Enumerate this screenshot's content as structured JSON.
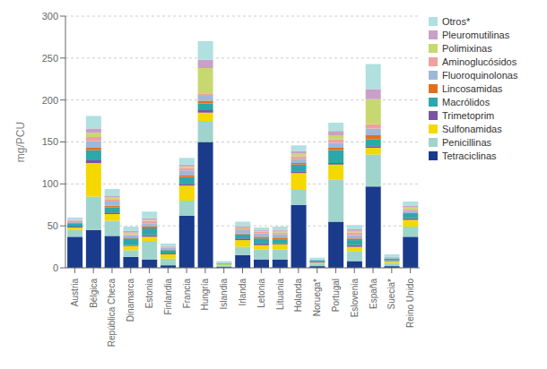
{
  "chart_data": {
    "type": "bar",
    "stacked": true,
    "ylabel": "mg/PCU",
    "categories": [
      "Austria",
      "Bélgica",
      "República Checa",
      "Dinamarca",
      "Estonia",
      "Finlandia",
      "Francia",
      "Hungría",
      "Islandia",
      "Irlanda",
      "Letonia",
      "Lituania",
      "Holanda",
      "Noruega*",
      "Portugal",
      "Eslovenia",
      "España",
      "Suecia*",
      "Reino Unido"
    ],
    "series": [
      {
        "name": "Tetraciclinas",
        "color": "#1a3b8c",
        "values": [
          37,
          45,
          38,
          13,
          10,
          3,
          62,
          150,
          1,
          15,
          10,
          10,
          75,
          2,
          55,
          8,
          97,
          2,
          37
        ]
      },
      {
        "name": "Penicillinas",
        "color": "#9fd4cc",
        "values": [
          8,
          40,
          18,
          8,
          22,
          8,
          18,
          25,
          2,
          10,
          12,
          12,
          18,
          3,
          50,
          12,
          38,
          4,
          12
        ]
      },
      {
        "name": "Sulfonamidas",
        "color": "#f5d800",
        "values": [
          3,
          40,
          8,
          5,
          5,
          5,
          18,
          10,
          1,
          8,
          5,
          6,
          20,
          1,
          18,
          5,
          8,
          2,
          8
        ]
      },
      {
        "name": "Trimetoprim",
        "color": "#7855a0",
        "values": [
          1,
          3,
          2,
          1,
          2,
          1,
          2,
          3,
          0,
          2,
          2,
          1,
          2,
          1,
          2,
          2,
          2,
          1,
          2
        ]
      },
      {
        "name": "Macrólidos",
        "color": "#2ca8aa",
        "values": [
          4,
          12,
          6,
          8,
          8,
          4,
          8,
          8,
          1,
          5,
          6,
          5,
          8,
          2,
          15,
          6,
          8,
          2,
          5
        ]
      },
      {
        "name": "Lincosamidas",
        "color": "#e07020",
        "values": [
          1,
          3,
          2,
          1,
          2,
          1,
          2,
          3,
          0,
          1,
          2,
          2,
          2,
          0,
          3,
          2,
          5,
          0,
          1
        ]
      },
      {
        "name": "Fluoroquinolonas",
        "color": "#a0b8d8",
        "values": [
          2,
          8,
          5,
          3,
          4,
          2,
          6,
          6,
          1,
          4,
          4,
          4,
          5,
          1,
          6,
          4,
          8,
          1,
          3
        ]
      },
      {
        "name": "Aminoglucósidos",
        "color": "#f0a0a0",
        "values": [
          1,
          5,
          3,
          1,
          3,
          1,
          3,
          3,
          0,
          2,
          2,
          2,
          3,
          0,
          4,
          3,
          5,
          0,
          2
        ]
      },
      {
        "name": "Polimixinas",
        "color": "#c8d870",
        "values": [
          0,
          5,
          2,
          2,
          1,
          0,
          2,
          30,
          0,
          1,
          1,
          2,
          3,
          0,
          5,
          2,
          30,
          0,
          2
        ]
      },
      {
        "name": "Pleuromutilinas",
        "color": "#c8a0c8",
        "values": [
          0,
          5,
          2,
          2,
          2,
          1,
          2,
          10,
          0,
          1,
          1,
          1,
          3,
          0,
          5,
          2,
          12,
          1,
          2
        ]
      },
      {
        "name": "Otros*",
        "color": "#b0e0e0",
        "values": [
          3,
          15,
          8,
          5,
          8,
          3,
          8,
          22,
          2,
          6,
          3,
          4,
          7,
          2,
          10,
          5,
          30,
          3,
          5
        ]
      }
    ],
    "ylim": [
      0,
      300
    ],
    "yticks": [
      0,
      50,
      100,
      150,
      200,
      250,
      300
    ],
    "grid": true,
    "legend": "upper right"
  }
}
